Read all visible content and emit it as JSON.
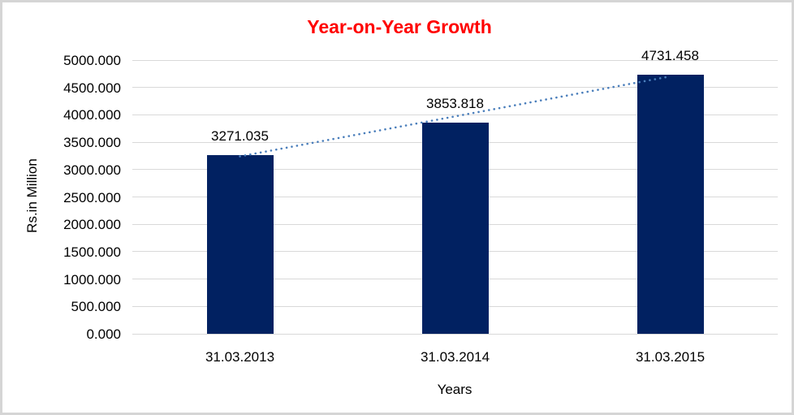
{
  "page": {
    "background_color": "#ffffff",
    "frame_color": "#d5d5d5"
  },
  "chart_data": {
    "type": "bar",
    "title": "Year-on-Year Growth",
    "title_color": "#ff0000",
    "xlabel": "Years",
    "ylabel": "Rs.in Million",
    "categories": [
      "31.03.2013",
      "31.03.2014",
      "31.03.2015"
    ],
    "values": [
      3271.035,
      3853.818,
      4731.458
    ],
    "data_labels": [
      "3271.035",
      "3853.818",
      "4731.458"
    ],
    "ylim": [
      0,
      5000
    ],
    "ytick_step": 500,
    "ytick_labels": [
      "0.000",
      "500.000",
      "1000.000",
      "1500.000",
      "2000.000",
      "2500.000",
      "3000.000",
      "3500.000",
      "4000.000",
      "4500.000",
      "5000.000"
    ],
    "grid": true,
    "legend": "none",
    "bar_color": "#012161",
    "gridline_color": "#d9d9d9",
    "label_color": "#000000",
    "trendline": {
      "type": "linear",
      "style": "dotted",
      "color": "#4a7ebb"
    }
  }
}
